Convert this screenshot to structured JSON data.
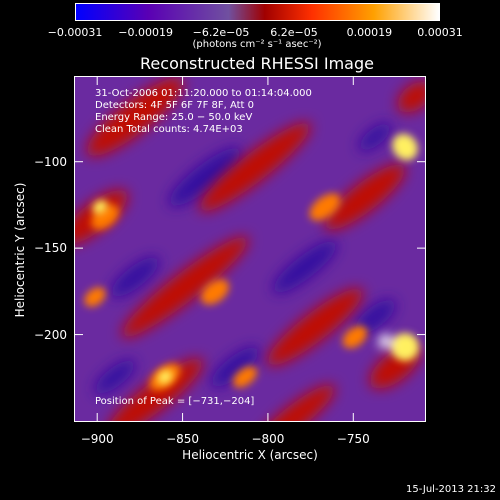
{
  "chart_data": {
    "type": "heatmap",
    "title": "Reconstructed RHESSI Image",
    "xlabel": "Heliocentric X (arcsec)",
    "ylabel": "Heliocentric Y (arcsec)",
    "x_ticks": [
      "−900",
      "−850",
      "−800",
      "−750"
    ],
    "x_tick_values": [
      -900,
      -850,
      -800,
      -750
    ],
    "y_ticks": [
      "−100",
      "−150",
      "−200"
    ],
    "y_tick_values": [
      -100,
      -150,
      -200
    ],
    "xlim": [
      -913,
      -708
    ],
    "ylim": [
      -250,
      -51
    ],
    "colorbar": {
      "tick_labels": [
        "−0.00031",
        "−0.00019",
        "−6.2e−05",
        "6.2e−05",
        "0.00019",
        "0.00031"
      ],
      "tick_values": [
        -0.00031,
        -0.00019,
        -6.2e-05,
        6.2e-05,
        0.00019,
        0.00031
      ],
      "unit_label": "(photons cm⁻² s⁻¹ asec⁻²)",
      "colors": [
        "#0000ff",
        "#5a00b4",
        "#a0a0a0",
        "#ff3000",
        "#ff9000",
        "#ffffff"
      ]
    },
    "annotations": [
      "31-Oct-2006 01:11:20.000 to 01:14:04.000",
      "Detectors: 4F 5F 6F 7F 8F, Att 0",
      "Energy Range: 25.0 − 50.0 keV",
      "Clean     Total counts: 4.74E+03"
    ],
    "peak": {
      "label": "Position of Peak = [−731,−204]",
      "x": -731,
      "y": -204
    }
  },
  "timestamp": "15-Jul-2013 21:32"
}
